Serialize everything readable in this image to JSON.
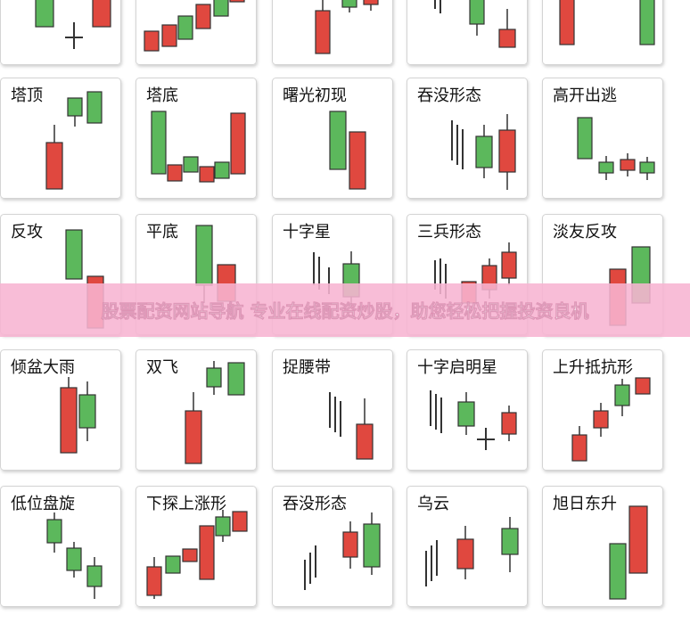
{
  "cards": [
    {
      "label": "塔顶"
    },
    {
      "label": "塔底"
    },
    {
      "label": "曙光初现"
    },
    {
      "label": "吞没形态"
    },
    {
      "label": "高开出逃"
    },
    {
      "label": "反攻"
    },
    {
      "label": "平底"
    },
    {
      "label": "十字星"
    },
    {
      "label": "三兵形态"
    },
    {
      "label": "淡友反攻"
    },
    {
      "label": "倾盆大雨"
    },
    {
      "label": "双飞"
    },
    {
      "label": "捉腰带"
    },
    {
      "label": "十字启明星"
    },
    {
      "label": "上升抵抗形"
    },
    {
      "label": "低位盘旋"
    },
    {
      "label": "下探上涨形"
    },
    {
      "label": "吞没形态"
    },
    {
      "label": "乌云"
    },
    {
      "label": "旭日东升"
    }
  ],
  "banner": {
    "text": "股票配资网站导航 专业在线配资炒股，助您轻松把握投资良机"
  }
}
